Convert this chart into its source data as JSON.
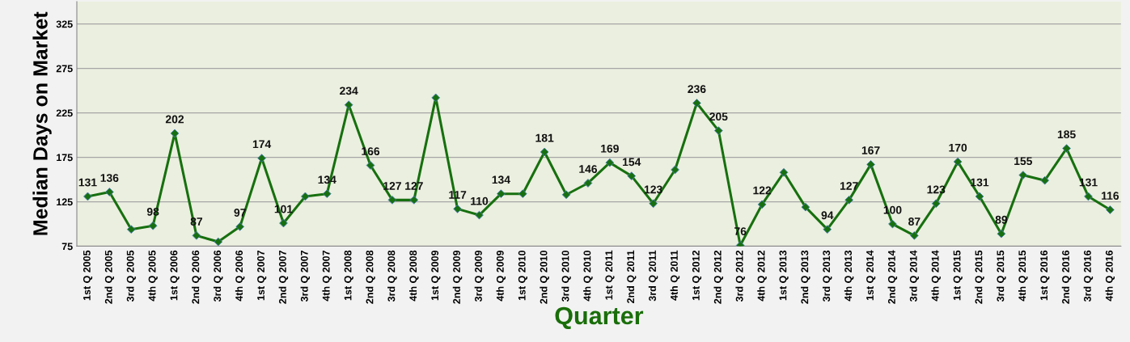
{
  "chart_data": {
    "type": "line",
    "xlabel": "Quarter",
    "ylabel": "Median Days on Market",
    "categories": [
      "1st Q 2005",
      "2nd Q 2005",
      "3rd Q 2005",
      "4th Q 2005",
      "1st Q 2006",
      "2nd Q 2006",
      "3rd Q 2006",
      "4th Q 2006",
      "1st Q 2007",
      "2nd Q 2007",
      "3rd Q 2007",
      "4th Q 2007",
      "1st Q 2008",
      "2nd Q 2008",
      "3rd Q 2008",
      "4th Q 2008",
      "1st Q 2009",
      "2nd Q 2009",
      "3rd Q 2009",
      "4th Q 2009",
      "1st Q 2010",
      "2nd Q 2010",
      "3rd Q 2010",
      "4th Q 2010",
      "1st Q 2011",
      "2nd Q 2011",
      "3rd Q 2011",
      "4th Q 2011",
      "1st Q 2012",
      "2nd Q 2012",
      "3rd Q 2012",
      "4th Q 2012",
      "1st Q 2013",
      "2nd Q 2013",
      "3rd Q 2013",
      "4th Q 2013",
      "1st Q 2014",
      "2nd Q 2014",
      "3rd Q 2014",
      "4th Q 2014",
      "1st Q 2015",
      "2nd Q 2015",
      "3rd Q 2015",
      "4th Q 2015",
      "1st Q 2016",
      "2nd Q 2016",
      "3rd Q 2016",
      "4th Q 2016"
    ],
    "series": [
      {
        "color": "#17700f",
        "values": [
          131,
          136,
          94,
          98,
          202,
          87,
          80,
          97,
          174,
          101,
          131,
          134,
          234,
          166,
          127,
          127,
          242,
          117,
          110,
          134,
          134,
          181,
          133,
          146,
          169,
          154,
          123,
          161,
          236,
          205,
          76,
          122,
          158,
          119,
          94,
          127,
          167,
          100,
          87,
          123,
          170,
          131,
          89,
          155,
          149,
          185,
          131,
          116
        ],
        "value_labels": [
          "131",
          "136",
          null,
          "98",
          "202",
          "87",
          null,
          "97",
          "174",
          "101",
          null,
          "134",
          "234",
          "166",
          "127",
          "127",
          null,
          "117",
          "110",
          "134",
          null,
          "181",
          null,
          "146",
          "169",
          "154",
          "123",
          null,
          "236",
          "205",
          "76",
          "122",
          null,
          null,
          "94",
          "127",
          "167",
          "100",
          "87",
          "123",
          "170",
          "131",
          "89",
          "155",
          null,
          "185",
          "131",
          "116"
        ]
      }
    ],
    "ylim": [
      75,
      350
    ],
    "yticks": [
      75,
      125,
      175,
      225,
      275,
      325
    ],
    "grid": "y",
    "marker": "diamond",
    "line_style": "solid"
  }
}
